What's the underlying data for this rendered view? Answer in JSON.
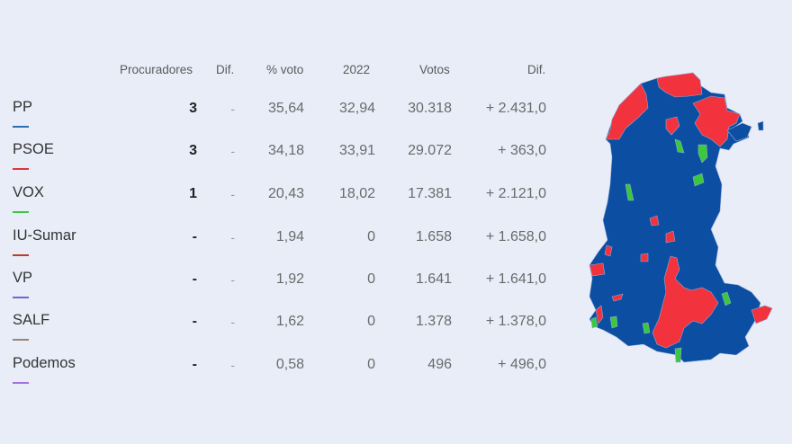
{
  "table": {
    "headers": {
      "procuradores": "Procuradores",
      "dif_seats": "Dif.",
      "pct_voto": "% voto",
      "prev_year": "2022",
      "votos": "Votos",
      "dif_votes": "Dif."
    },
    "rows": [
      {
        "party": "PP",
        "color": "#2E6DB4",
        "seats": "3",
        "seats_dif": "-",
        "pct": "35,64",
        "prev": "32,94",
        "votes": "30.318",
        "votes_dif": "+ 2.431,0"
      },
      {
        "party": "PSOE",
        "color": "#E0353F",
        "seats": "3",
        "seats_dif": "-",
        "pct": "34,18",
        "prev": "33,91",
        "votes": "29.072",
        "votes_dif": "+ 363,0"
      },
      {
        "party": "VOX",
        "color": "#3CC83C",
        "seats": "1",
        "seats_dif": "-",
        "pct": "20,43",
        "prev": "18,02",
        "votes": "17.381",
        "votes_dif": "+ 2.121,0"
      },
      {
        "party": "IU-Sumar",
        "color": "#C0392B",
        "seats": "-",
        "seats_dif": "-",
        "pct": "1,94",
        "prev": "0",
        "votes": "1.658",
        "votes_dif": "+ 1.658,0"
      },
      {
        "party": "VP",
        "color": "#6A6ACD",
        "seats": "-",
        "seats_dif": "-",
        "pct": "1,92",
        "prev": "0",
        "votes": "1.641",
        "votes_dif": "+ 1.641,0"
      },
      {
        "party": "SALF",
        "color": "#A08070",
        "seats": "-",
        "seats_dif": "-",
        "pct": "1,62",
        "prev": "0",
        "votes": "1.378",
        "votes_dif": "+ 1.378,0"
      },
      {
        "party": "Podemos",
        "color": "#A070E0",
        "seats": "-",
        "seats_dif": "-",
        "pct": "0,58",
        "prev": "0",
        "votes": "496",
        "votes_dif": "+ 496,0"
      }
    ]
  },
  "map": {
    "colors": {
      "pp": "#0B4EA2",
      "psoe": "#F2323C",
      "vox": "#3CC83C",
      "border": "#8FA8D8"
    }
  }
}
